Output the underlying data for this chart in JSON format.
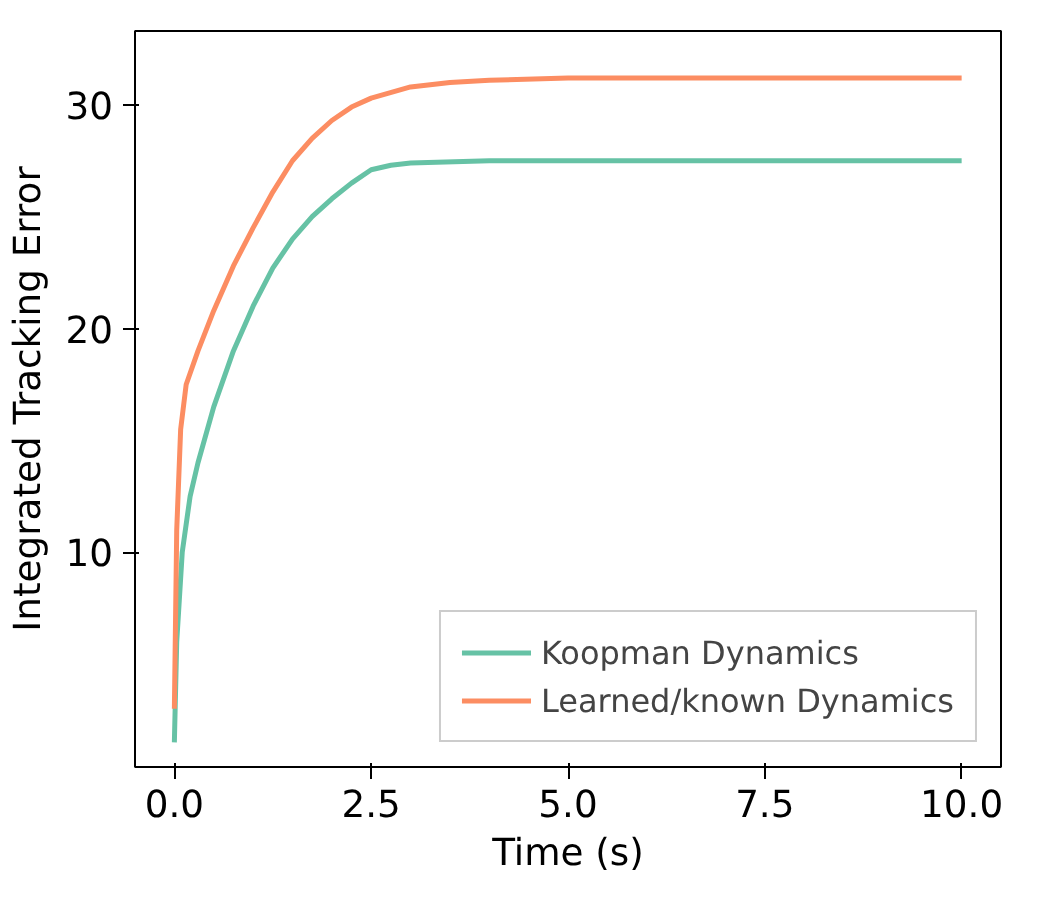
{
  "chart_data": {
    "type": "line",
    "xlabel": "Time (s)",
    "ylabel": "Integrated Tracking Error",
    "xlim": [
      -0.5,
      10.5
    ],
    "ylim": [
      0.4,
      33.3
    ],
    "xticks": [
      {
        "value": 0,
        "label": "0.0"
      },
      {
        "value": 2.5,
        "label": "2.5"
      },
      {
        "value": 5,
        "label": "5.0"
      },
      {
        "value": 7.5,
        "label": "7.5"
      },
      {
        "value": 10,
        "label": "10.0"
      }
    ],
    "yticks": [
      10,
      20,
      30
    ],
    "grid": false,
    "legend": "bottom right",
    "marker": "none",
    "line_style": "solid",
    "series": [
      {
        "name": "Koopman Dynamics",
        "color": "#66c2a5",
        "x": [
          0,
          0.03,
          0.1,
          0.2,
          0.3,
          0.5,
          0.75,
          1.0,
          1.25,
          1.5,
          1.75,
          2.0,
          2.25,
          2.5,
          2.75,
          3.0,
          4.0,
          5.0,
          7.5,
          10.0
        ],
        "values": [
          1.5,
          6,
          10,
          12.5,
          14,
          16.5,
          19,
          21,
          22.7,
          24,
          25,
          25.8,
          26.5,
          27.1,
          27.3,
          27.4,
          27.5,
          27.5,
          27.5,
          27.5
        ]
      },
      {
        "name": "Learned/known Dynamics",
        "color": "#fc8d62",
        "x": [
          0,
          0.03,
          0.08,
          0.15,
          0.3,
          0.5,
          0.75,
          1.0,
          1.25,
          1.5,
          1.75,
          2.0,
          2.25,
          2.5,
          3.0,
          3.5,
          4.0,
          5.0,
          7.5,
          10.0
        ],
        "values": [
          3,
          11,
          15.5,
          17.5,
          19,
          20.8,
          22.8,
          24.5,
          26.1,
          27.5,
          28.5,
          29.3,
          29.9,
          30.3,
          30.8,
          31.0,
          31.1,
          31.2,
          31.2,
          31.2
        ]
      }
    ]
  }
}
